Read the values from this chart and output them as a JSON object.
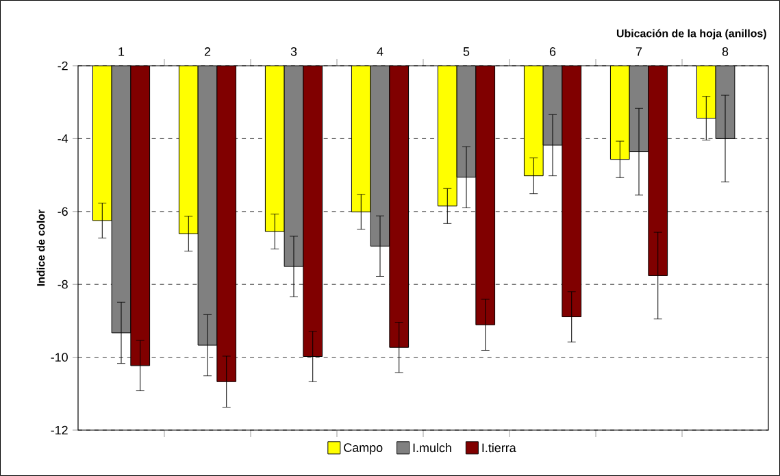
{
  "chart_data": {
    "type": "bar",
    "xlabel": "Ubicación de la hoja (anillos)",
    "ylabel": "Indice de color",
    "categories": [
      "1",
      "2",
      "3",
      "4",
      "5",
      "6",
      "7",
      "8"
    ],
    "series": [
      {
        "name": "Campo",
        "color": "#ffff00",
        "values": [
          -6.25,
          -6.61,
          -6.55,
          -6.01,
          -5.85,
          -5.02,
          -4.57,
          -3.44
        ],
        "errors": [
          0.48,
          0.48,
          0.48,
          0.48,
          0.48,
          0.49,
          0.5,
          0.6
        ]
      },
      {
        "name": "I.mulch",
        "color": "#808080",
        "values": [
          -9.33,
          -9.67,
          -7.51,
          -6.95,
          -5.06,
          -4.18,
          -4.36,
          -4.0
        ],
        "errors": [
          0.84,
          0.84,
          0.83,
          0.83,
          0.84,
          0.84,
          1.19,
          1.19
        ]
      },
      {
        "name": "I.tierra",
        "color": "#800000",
        "values": [
          -10.23,
          -10.67,
          -9.98,
          -9.73,
          -9.11,
          -8.89,
          -7.76,
          null
        ],
        "errors": [
          0.69,
          0.7,
          0.69,
          0.69,
          0.7,
          0.69,
          1.19,
          null
        ]
      }
    ],
    "ylim": [
      -12,
      -2
    ],
    "yticks": [
      -12,
      -10,
      -8,
      -6,
      -4,
      -2
    ],
    "grid": "y",
    "legend": "bottom"
  }
}
